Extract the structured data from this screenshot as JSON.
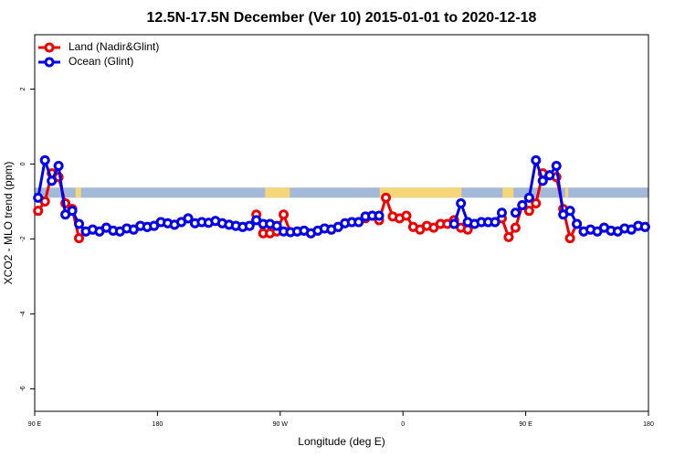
{
  "chart_data": {
    "type": "line",
    "title": "12.5N-17.5N December (Ver 10)   2015-01-01 to 2020-12-18",
    "x_label": "Longitude (deg E)",
    "y_label": "XCO2 - MLO trend (ppm)",
    "xlim": [
      90,
      540
    ],
    "ylim": [
      -6.6,
      3.45
    ],
    "xticks": [
      {
        "value": 90,
        "label": "90 E"
      },
      {
        "value": 180,
        "label": "180"
      },
      {
        "value": 270,
        "label": "90 W"
      },
      {
        "value": 360,
        "label": "0"
      },
      {
        "value": 450,
        "label": "90 E"
      },
      {
        "value": 540,
        "label": "180"
      }
    ],
    "yticks": [
      -6,
      -4,
      -2,
      0,
      2
    ],
    "legend": "top-left",
    "band": {
      "ylim": [
        -0.9,
        -0.63
      ],
      "color": "#a4b8d8",
      "land_color": "#f5d77a",
      "land_x": [
        [
          120,
          124
        ],
        [
          259,
          277
        ],
        [
          343,
          403
        ],
        [
          433,
          441
        ],
        [
          479,
          481
        ]
      ]
    },
    "x": [
      92.5,
      97.5,
      102.5,
      107.5,
      112.5,
      117.5,
      122.5,
      127.5,
      132.5,
      137.5,
      142.5,
      147.5,
      152.5,
      157.5,
      162.5,
      167.5,
      172.5,
      177.5,
      182.5,
      187.5,
      192.5,
      197.5,
      202.5,
      207.5,
      212.5,
      217.5,
      222.5,
      227.5,
      232.5,
      237.5,
      242.5,
      247.5,
      252.5,
      257.5,
      262.5,
      267.5,
      272.5,
      277.5,
      282.5,
      287.5,
      292.5,
      297.5,
      302.5,
      307.5,
      312.5,
      317.5,
      322.5,
      327.5,
      332.5,
      337.5,
      342.5,
      347.5,
      352.5,
      357.5,
      362.5,
      367.5,
      372.5,
      377.5,
      382.5,
      387.5,
      392.5,
      397.5,
      402.5,
      407.5,
      412.5,
      417.5,
      422.5,
      427.5,
      432.5,
      437.5,
      442.5,
      447.5,
      452.5,
      457.5,
      462.5,
      467.5,
      472.5,
      477.5,
      482.5,
      487.5,
      492.5,
      497.5,
      502.5,
      507.5,
      512.5,
      517.5,
      522.5,
      527.5,
      532.5,
      537.5
    ],
    "series": [
      {
        "name": "Land (Nadir&Glint)",
        "color": "#ee0000",
        "values": [
          -1.25,
          -1.0,
          -0.25,
          -0.35,
          -1.05,
          -1.2,
          -1.98,
          -1.8,
          -1.75,
          -1.8,
          -1.7,
          -1.78,
          -1.8,
          -1.72,
          -1.75,
          -1.65,
          -1.68,
          -1.65,
          -1.55,
          -1.58,
          -1.62,
          -1.55,
          -1.45,
          -1.58,
          -1.55,
          -1.57,
          -1.52,
          -1.58,
          -1.62,
          -1.65,
          -1.68,
          -1.65,
          -1.35,
          -1.85,
          -1.85,
          -1.8,
          -1.35,
          -1.82,
          -1.8,
          -1.78,
          -1.85,
          -1.78,
          -1.72,
          -1.75,
          -1.68,
          -1.58,
          -1.55,
          -1.55,
          -1.45,
          -1.38,
          -1.5,
          -0.9,
          -1.4,
          -1.45,
          -1.38,
          -1.68,
          -1.75,
          -1.65,
          -1.7,
          -1.6,
          -1.6,
          -1.5,
          -1.7,
          -1.75,
          -1.6,
          -1.55,
          -1.55,
          -1.55,
          -1.45,
          -1.95,
          -1.7,
          -1.1,
          -1.25,
          -1.05,
          -0.25,
          -0.3,
          -0.35,
          -1.2,
          -1.98,
          -1.6,
          -1.8,
          -1.75,
          -1.8,
          -1.7,
          -1.78,
          -1.8,
          -1.72,
          -1.75,
          -1.65,
          -1.68
        ]
      },
      {
        "name": "Ocean (Glint)",
        "color": "#0000ee",
        "values": [
          -0.9,
          0.1,
          -0.45,
          -0.05,
          -1.35,
          -1.25,
          -1.6,
          -1.8,
          -1.75,
          -1.8,
          -1.7,
          -1.78,
          -1.8,
          -1.72,
          -1.75,
          -1.65,
          -1.68,
          -1.65,
          -1.55,
          -1.58,
          -1.62,
          -1.55,
          -1.45,
          -1.58,
          -1.55,
          -1.57,
          -1.52,
          -1.58,
          -1.62,
          -1.65,
          -1.68,
          -1.65,
          -1.5,
          -1.6,
          -1.6,
          -1.65,
          -1.8,
          -1.82,
          -1.8,
          -1.78,
          -1.85,
          -1.78,
          -1.72,
          -1.75,
          -1.68,
          -1.58,
          -1.55,
          -1.55,
          -1.4,
          -1.38,
          -1.38,
          null,
          null,
          null,
          null,
          null,
          null,
          null,
          null,
          null,
          null,
          -1.6,
          -1.05,
          -1.55,
          -1.6,
          -1.55,
          -1.55,
          -1.55,
          -1.3,
          null,
          -1.3,
          -1.1,
          -0.9,
          0.1,
          -0.45,
          -0.3,
          -0.05,
          -1.35,
          -1.25,
          -1.6,
          -1.8,
          -1.75,
          -1.8,
          -1.7,
          -1.78,
          -1.8,
          -1.72,
          -1.75,
          -1.65,
          -1.68
        ]
      }
    ]
  }
}
